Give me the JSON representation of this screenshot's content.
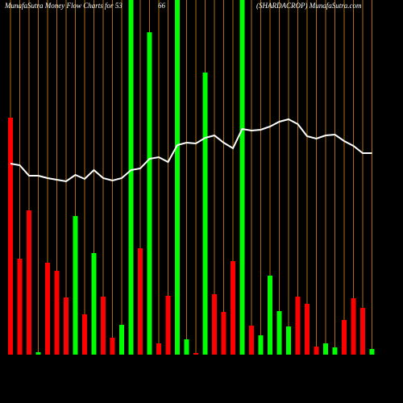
{
  "chart_data": {
    "type": "bar",
    "title": "MunafaSutra  Money Flow  Charts for 53",
    "title_fragment": "66",
    "subtitle": "(SHARDACROP) MunafaSutra.com",
    "ylim": [
      0,
      440
    ],
    "grid": true,
    "grid_color": "#b07010",
    "values": [
      294,
      119,
      179,
      3,
      114,
      104,
      71,
      172,
      50,
      126,
      72,
      21,
      37,
      440,
      132,
      400,
      14,
      73,
      440,
      19,
      2,
      350,
      75,
      53,
      116,
      440,
      36,
      24,
      98,
      54,
      35,
      72,
      63,
      10,
      14,
      9,
      43,
      70,
      58,
      7
    ],
    "colors": [
      "#ff0000",
      "#ff0000",
      "#ff0000",
      "#00ff00",
      "#ff0000",
      "#ff0000",
      "#ff0000",
      "#00ff00",
      "#ff0000",
      "#00ff00",
      "#ff0000",
      "#ff0000",
      "#00ff00",
      "#00ff00",
      "#ff0000",
      "#00ff00",
      "#ff0000",
      "#ff0000",
      "#00ff00",
      "#00ff00",
      "#ff0000",
      "#00ff00",
      "#ff0000",
      "#ff0000",
      "#ff0000",
      "#00ff00",
      "#ff0000",
      "#00ff00",
      "#00ff00",
      "#00ff00",
      "#00ff00",
      "#ff0000",
      "#ff0000",
      "#ff0000",
      "#00ff00",
      "#00ff00",
      "#ff0000",
      "#ff0000",
      "#ff0000",
      "#00ff00"
    ],
    "line": {
      "color": "#ffffff",
      "values": [
        237,
        235,
        222,
        222,
        219,
        217,
        215,
        223,
        218,
        229,
        219,
        216,
        219,
        229,
        231,
        243,
        245,
        239,
        260,
        263,
        262,
        269,
        272,
        263,
        256,
        280,
        278,
        279,
        283,
        289,
        292,
        286,
        271,
        268,
        272,
        273,
        265,
        259,
        250,
        250
      ]
    }
  }
}
